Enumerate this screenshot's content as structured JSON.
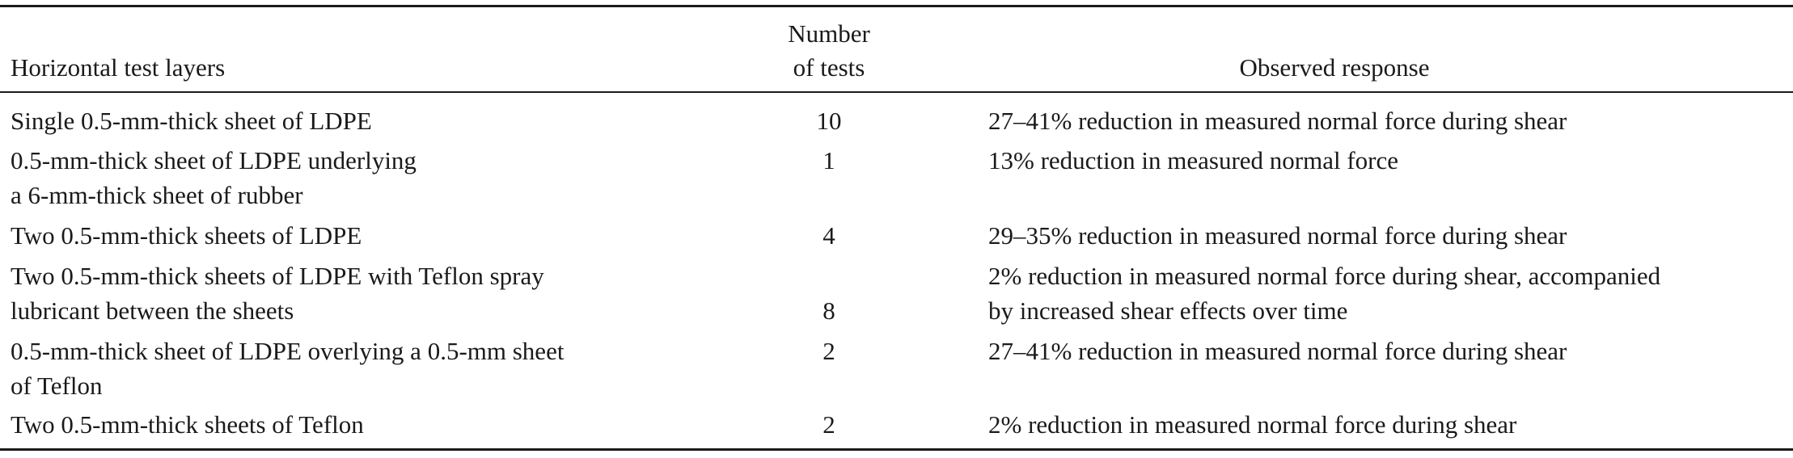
{
  "table": {
    "headers": {
      "layers": "Horizontal test layers",
      "tests_line1": "Number",
      "tests_line2": "of tests",
      "response": "Observed response"
    },
    "rows": [
      {
        "layers": [
          "Single 0.5-mm-thick sheet of LDPE"
        ],
        "tests": "10",
        "response": [
          "27–41% reduction in measured normal force during shear"
        ]
      },
      {
        "layers": [
          "0.5-mm-thick sheet of LDPE underlying",
          "a 6-mm-thick sheet of rubber"
        ],
        "tests": "1",
        "response": [
          "13% reduction in measured normal force"
        ]
      },
      {
        "layers": [
          "Two 0.5-mm-thick sheets of LDPE"
        ],
        "tests": "4",
        "response": [
          "29–35% reduction in measured normal force during shear"
        ]
      },
      {
        "layers": [
          "Two 0.5-mm-thick sheets of LDPE with Teflon spray",
          "lubricant between the sheets"
        ],
        "tests": "8",
        "response": [
          "2% reduction in measured normal force during shear, accompanied",
          "by increased shear effects over time"
        ]
      },
      {
        "layers": [
          "0.5-mm-thick sheet of LDPE overlying a 0.5-mm sheet",
          "of Teflon"
        ],
        "tests": "2",
        "response": [
          "27–41% reduction in measured normal force during shear"
        ]
      },
      {
        "layers": [
          "Two 0.5-mm-thick sheets of Teflon"
        ],
        "tests": "2",
        "response": [
          "2% reduction in measured normal force during shear"
        ]
      }
    ]
  }
}
